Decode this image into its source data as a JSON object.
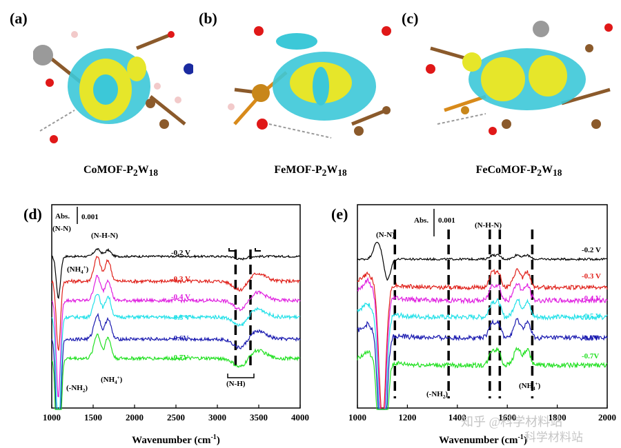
{
  "top_panels": [
    {
      "label": "(a)",
      "caption_prefix": "CoMOF-P",
      "sub1": "2",
      "mid": "W",
      "sub2": "18"
    },
    {
      "label": "(b)",
      "caption_prefix": "FeMOF-P",
      "sub1": "2",
      "mid": "W",
      "sub2": "18"
    },
    {
      "label": "(c)",
      "caption_prefix": "FeCoMOF-P",
      "sub1": "2",
      "mid": "W",
      "sub2": "18"
    }
  ],
  "chart_data": [
    {
      "panel": "(d)",
      "type": "line",
      "xlabel": "Wavenumber (cm⁻¹)",
      "xlim": [
        1000,
        4000
      ],
      "x_ticks": [
        "1000",
        "1500",
        "2000",
        "2500",
        "3000",
        "3500",
        "4000"
      ],
      "scale_bar": {
        "label": "Abs.",
        "value": "0.001"
      },
      "series": [
        {
          "name": "-0.2 V",
          "color": "#000000"
        },
        {
          "name": "-0.3 V",
          "color": "#e0201a"
        },
        {
          "name": "-0.4 V",
          "color": "#e020e0"
        },
        {
          "name": "-0.5 V",
          "color": "#20e0e8"
        },
        {
          "name": "-0.6V",
          "color": "#1a1ab0"
        },
        {
          "name": "-0.7V",
          "color": "#20e020"
        }
      ],
      "annotations": [
        "(N-N)",
        "(NH4+)",
        "(N-H-N)",
        "(-NH2)",
        "(NH4+)",
        "(N-H)"
      ],
      "marker_lines_x": [
        3220,
        3400
      ]
    },
    {
      "panel": "(e)",
      "type": "line",
      "xlabel": "Wavenumber (cm⁻¹)",
      "xlim": [
        1000,
        2000
      ],
      "x_ticks": [
        "1000",
        "1200",
        "1400",
        "1600",
        "1800",
        "2000"
      ],
      "scale_bar": {
        "label": "Abs.",
        "value": "0.001"
      },
      "series": [
        {
          "name": "-0.2 V",
          "color": "#000000"
        },
        {
          "name": "-0.3 V",
          "color": "#e0201a"
        },
        {
          "name": "-0.4 V",
          "color": "#e020e0"
        },
        {
          "name": "-0.5 V",
          "color": "#20e0e8"
        },
        {
          "name": "-0.6V",
          "color": "#1a1ab0"
        },
        {
          "name": "-0.7V",
          "color": "#20e020"
        }
      ],
      "annotations": [
        "(N-N)",
        "(N-H-N)",
        "(-NH2)",
        "(NH4+)"
      ],
      "marker_lines_x": [
        1150,
        1365,
        1530,
        1570,
        1700
      ]
    }
  ],
  "watermark": {
    "line1": "知乎 @科学材料站",
    "line2": "科学材料站"
  }
}
